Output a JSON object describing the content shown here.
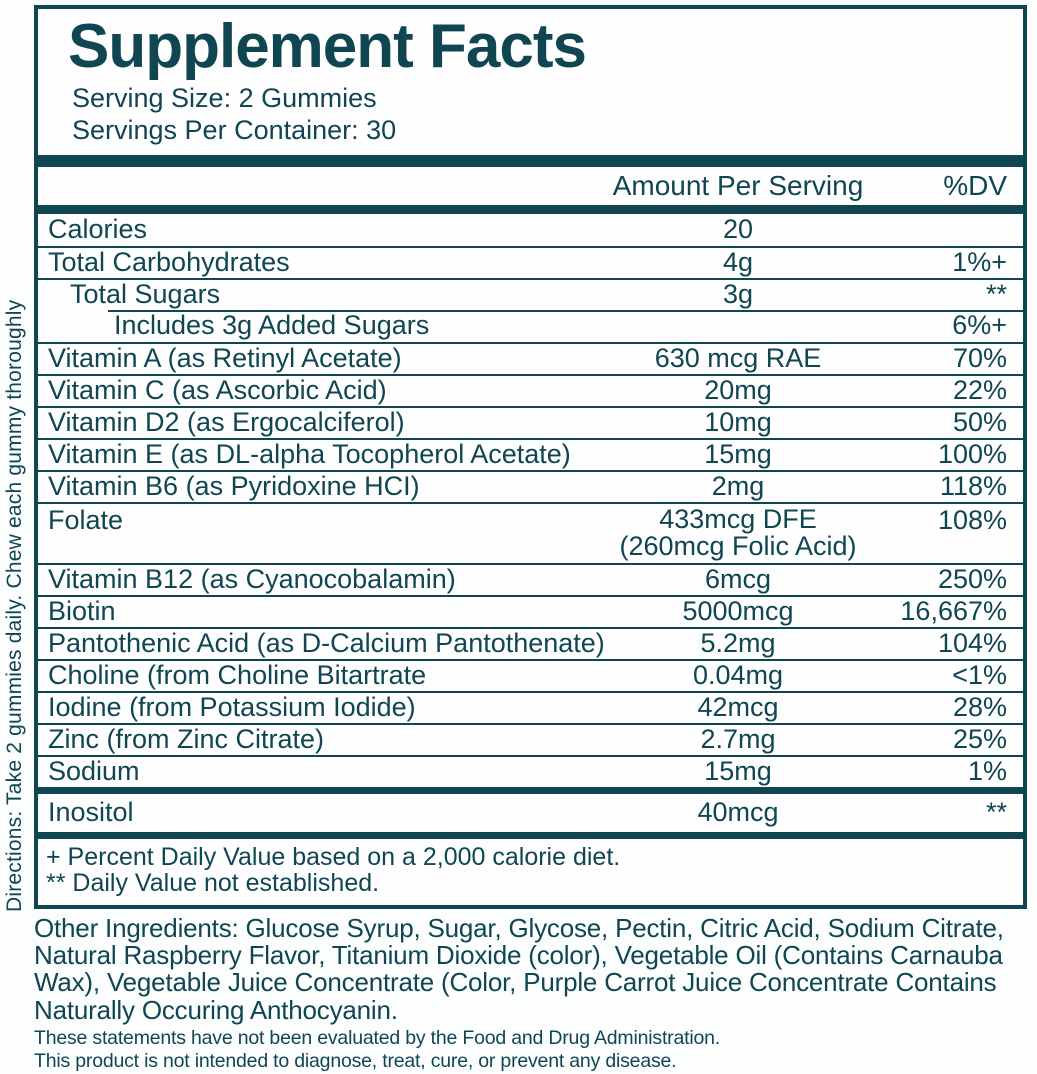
{
  "title": "Supplement Facts",
  "serving": {
    "size": "Serving Size: 2 Gummies",
    "per_container": "Servings Per Container: 30"
  },
  "directions": "Directions: Take 2 gummies daily. Chew each gummy thoroughly",
  "table": {
    "headers": {
      "amount": "Amount Per Serving",
      "dv": "%DV"
    },
    "rows": [
      {
        "label": "Calories",
        "amount": "20",
        "dv": "",
        "indent": 0
      },
      {
        "label": "Total Carbohydrates",
        "amount": "4g",
        "dv": "1%+",
        "indent": 0
      },
      {
        "label": "Total Sugars",
        "amount": "3g",
        "dv": "**",
        "indent": 1
      },
      {
        "label": "Includes 3g Added Sugars",
        "amount": "",
        "dv": "6%+",
        "indent": 2,
        "sep": "indent"
      },
      {
        "label": "Vitamin A (as Retinyl Acetate)",
        "amount": "630 mcg RAE",
        "dv": "70%",
        "indent": 0
      },
      {
        "label": "Vitamin C (as Ascorbic Acid)",
        "amount": "20mg",
        "dv": "22%",
        "indent": 0
      },
      {
        "label": "Vitamin D2 (as Ergocalciferol)",
        "amount": "10mg",
        "dv": "50%",
        "indent": 0
      },
      {
        "label": "Vitamin E (as DL-alpha Tocopherol Acetate)",
        "amount": "15mg",
        "dv": "100%",
        "indent": 0
      },
      {
        "label": "Vitamin B6 (as Pyridoxine HCI)",
        "amount": "2mg",
        "dv": "118%",
        "indent": 0
      },
      {
        "label": "Folate",
        "amount": "433mcg DFE",
        "amount2": "(260mcg Folic Acid)",
        "dv": "108%",
        "indent": 0
      },
      {
        "label": "Vitamin B12 (as Cyanocobalamin)",
        "amount": "6mcg",
        "dv": "250%",
        "indent": 0
      },
      {
        "label": "Biotin",
        "amount": "5000mcg",
        "dv": "16,667%",
        "indent": 0
      },
      {
        "label": "Pantothenic Acid (as D-Calcium Pantothenate)",
        "amount": "5.2mg",
        "dv": "104%",
        "indent": 0
      },
      {
        "label": "Choline (from Choline Bitartrate",
        "amount": "0.04mg",
        "dv": "<1%",
        "indent": 0
      },
      {
        "label": "Iodine (from Potassium Iodide)",
        "amount": "42mcg",
        "dv": "28%",
        "indent": 0
      },
      {
        "label": "Zinc (from Zinc Citrate)",
        "amount": "2.7mg",
        "dv": "25%",
        "indent": 0
      },
      {
        "label": "Sodium",
        "amount": "15mg",
        "dv": "1%",
        "indent": 0
      },
      {
        "label": "Inositol",
        "amount": "40mcg",
        "dv": "**",
        "indent": 0,
        "bar_above": true
      }
    ]
  },
  "footnotes": [
    "+ Percent Daily Value based on a 2,000 calorie diet.",
    "** Daily Value not established."
  ],
  "other_ingredients": "Other Ingredients: Glucose Syrup, Sugar, Glycose, Pectin, Citric Acid, Sodium Citrate, Natural Raspberry Flavor, Titanium Dioxide (color), Vegetable Oil (Contains Carnauba Wax), Vegetable Juice Concentrate (Color, Purple Carrot Juice Concentrate Contains Naturally Occuring Anthocyanin.",
  "disclaimer": [
    "These statements have not been evaluated by the Food and Drug Administration.",
    "This product is not intended to diagnose, treat, cure, or prevent any disease."
  ],
  "colors": {
    "accent_teal": "#0f4652",
    "background": "#fcfdfd"
  }
}
